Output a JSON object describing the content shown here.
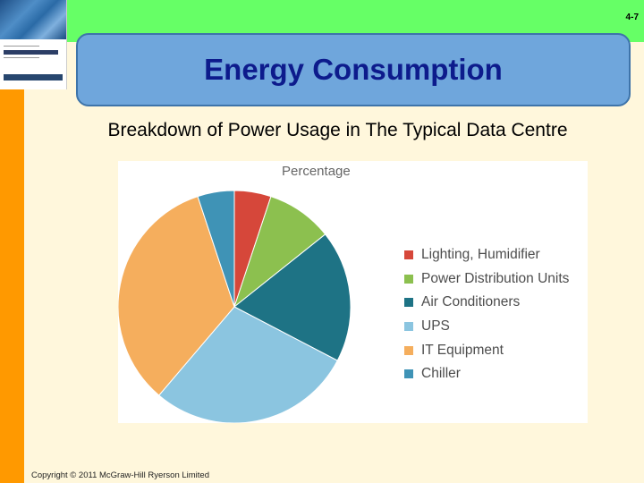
{
  "slide_number": "4-7",
  "title": "Energy Consumption",
  "subtitle": "Breakdown of Power Usage in The Typical Data Centre",
  "copyright": "Copyright © 2011 McGraw-Hill Ryerson Limited",
  "colors": {
    "top_band": "#66ff66",
    "left_band": "#ff9900",
    "title_box": "#6fa6dc",
    "title_text": "#0d1b8c",
    "background": "#fff7dc"
  },
  "chart_data": {
    "type": "pie",
    "title": "Percentage",
    "legend_position": "right",
    "categories": [
      "Lighting, Humidifier",
      "Power Distribution Units",
      "Air Conditioners",
      "UPS",
      "IT Equipment",
      "Chiller"
    ],
    "values": [
      5,
      9,
      18,
      28,
      33,
      5
    ],
    "colors": [
      "#d6473a",
      "#8cc04f",
      "#1e7385",
      "#8bc5e0",
      "#f5ae5d",
      "#3f93b6"
    ]
  }
}
